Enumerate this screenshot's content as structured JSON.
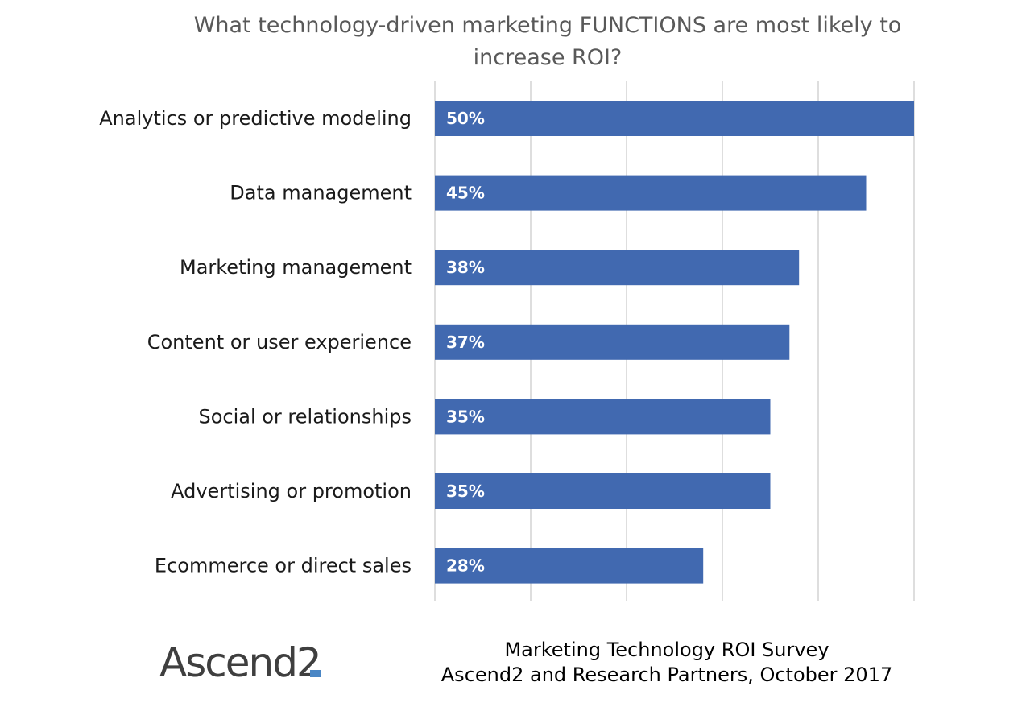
{
  "chart_data": {
    "type": "bar",
    "orientation": "horizontal",
    "title_lines": [
      "What technology-driven marketing FUNCTIONS are most likely to",
      "increase ROI?"
    ],
    "categories": [
      "Analytics or predictive modeling",
      "Data management",
      "Marketing management",
      "Content or user experience",
      "Social or relationships",
      "Advertising or promotion",
      "Ecommerce or direct sales"
    ],
    "values": [
      50,
      45,
      38,
      37,
      35,
      35,
      28
    ],
    "data_labels": [
      "50%",
      "45%",
      "38%",
      "37%",
      "35%",
      "35%",
      "28%"
    ],
    "unit": "%",
    "xlim": [
      0,
      50
    ],
    "x_gridlines": [
      0,
      10,
      20,
      30,
      40,
      50
    ],
    "grid": true,
    "x_tick_labels_shown": false,
    "legend": "none",
    "bar_color": "#4169b0",
    "grid_color": "#d4d4d4"
  },
  "footer": {
    "logo_text": "Ascend2",
    "source_lines": [
      "Marketing Technology ROI Survey",
      "Ascend2 and Research Partners, October 2017"
    ]
  }
}
